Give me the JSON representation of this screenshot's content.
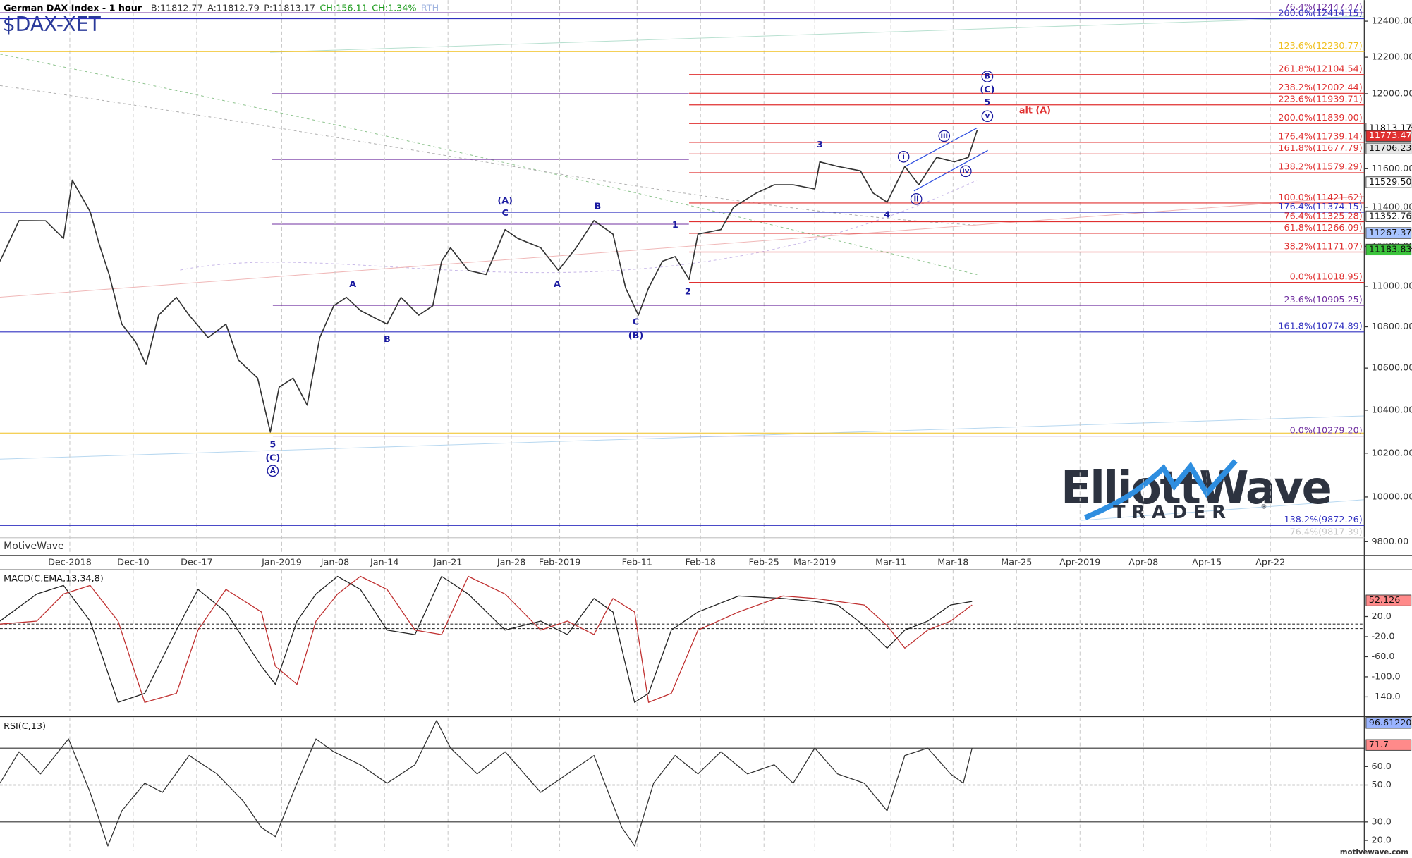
{
  "header": {
    "title": "German DAX Index - 1 hour",
    "bid": "B:11812.77",
    "ask": "A:11812.79",
    "price": "P:11813.17",
    "change": "CH:156.11",
    "change_pct": "CH:1.34%",
    "session": "RTH",
    "symbol": "$DAX-XET",
    "watermark": "MotiveWave",
    "footer": "motivewave.com"
  },
  "logo": {
    "word1": "Elliott",
    "word2": "Wave",
    "word3": "TRADER",
    "mark": "®"
  },
  "chart_data": [
    {
      "type": "line",
      "log": true,
      "xlim": [
        -5.5,
        102
      ],
      "ylim": [
        9747,
        12519
      ],
      "xticks": [
        {
          "value": 0,
          "label": "Dec-2018"
        },
        {
          "value": 5,
          "label": "Dec-10"
        },
        {
          "value": 10,
          "label": "Dec-17"
        },
        {
          "value": 16.7,
          "label": "Jan-2019"
        },
        {
          "value": 20.9,
          "label": "Jan-08"
        },
        {
          "value": 24.8,
          "label": "Jan-14"
        },
        {
          "value": 29.8,
          "label": "Jan-21"
        },
        {
          "value": 34.8,
          "label": "Jan-28"
        },
        {
          "value": 38.6,
          "label": "Feb-2019"
        },
        {
          "value": 44.7,
          "label": "Feb-11"
        },
        {
          "value": 49.7,
          "label": "Feb-18"
        },
        {
          "value": 54.7,
          "label": "Feb-25"
        },
        {
          "value": 58.7,
          "label": "Mar-2019"
        },
        {
          "value": 64.7,
          "label": "Mar-11"
        },
        {
          "value": 69.6,
          "label": "Mar-18"
        },
        {
          "value": 74.6,
          "label": "Mar-25"
        },
        {
          "value": 79.6,
          "label": "Apr-2019"
        },
        {
          "value": 84.6,
          "label": "Apr-08"
        },
        {
          "value": 89.6,
          "label": "Apr-15"
        },
        {
          "value": 94.6,
          "label": "Apr-22"
        }
      ],
      "yticks": [
        {
          "value": 9800,
          "label": "9800.00"
        },
        {
          "value": 10000,
          "label": "10000.00"
        },
        {
          "value": 10200,
          "label": "10200.00"
        },
        {
          "value": 10400,
          "label": "10400.00"
        },
        {
          "value": 10600,
          "label": "10600.00"
        },
        {
          "value": 10800,
          "label": "10800.00"
        },
        {
          "value": 11000,
          "label": "11000.00"
        },
        {
          "value": 11200,
          "label": "11200.00"
        },
        {
          "value": 11400,
          "label": "11400.00"
        },
        {
          "value": 11600,
          "label": "11600.00"
        },
        {
          "value": 11800,
          "label": "11800.00"
        },
        {
          "value": 12000,
          "label": "12000.00"
        },
        {
          "value": 12200,
          "label": "12200.00"
        },
        {
          "value": 12400,
          "label": "12400.00"
        }
      ],
      "series": [
        {
          "color": "#333333",
          "x": [
            -5.5,
            -4.0,
            -1.9,
            -0.5,
            0.2,
            1.6,
            2.3,
            3.1,
            4.1,
            5.2,
            6.0,
            7.0,
            8.4,
            9.4,
            10.9,
            12.3,
            13.3,
            14.8,
            15.8,
            16.5,
            17.6,
            18.7,
            19.7,
            20.8,
            21.8,
            22.9,
            24.3,
            25.0,
            26.1,
            27.5,
            28.6,
            29.3,
            30.0,
            31.4,
            32.8,
            34.3,
            35.3,
            37.1,
            38.5,
            39.9,
            41.3,
            42.8,
            43.8,
            44.8,
            45.6,
            46.7,
            47.7,
            48.8,
            49.5,
            51.3,
            52.3,
            54.1,
            55.5,
            57.0,
            58.7,
            59.1,
            60.5,
            62.3,
            63.3,
            64.4,
            65.8,
            66.9,
            68.3,
            69.7,
            70.8,
            71.5
          ],
          "values": [
            11125,
            11331,
            11330,
            11240,
            11540,
            11377,
            11215,
            11058,
            10813,
            10725,
            10617,
            10857,
            10945,
            10857,
            10747,
            10813,
            10638,
            10552,
            10298,
            10509,
            10552,
            10424,
            10747,
            10903,
            10945,
            10880,
            10835,
            10813,
            10945,
            10857,
            10903,
            11125,
            11193,
            11079,
            11058,
            11285,
            11240,
            11193,
            11079,
            11193,
            11331,
            11262,
            10991,
            10857,
            10991,
            11125,
            11148,
            11034,
            11262,
            11285,
            11400,
            11473,
            11516,
            11516,
            11494,
            11636,
            11612,
            11589,
            11473,
            11426,
            11612,
            11516,
            11660,
            11636,
            11660,
            11805
          ]
        }
      ],
      "levels": [
        {
          "label": "76.4%(12447.47)",
          "value": 12447.47,
          "color": "#7030a0"
        },
        {
          "label": "200.0%(12414.15)",
          "value": 12414.15,
          "color": "#3030c0"
        },
        {
          "label": "123.6%(12230.77)",
          "value": 12230.77,
          "color": "#f0c020"
        },
        {
          "label": "261.8%(12104.54)",
          "value": 12104.54,
          "color": "#e03030",
          "from": 48.8
        },
        {
          "label": "238.2%(12002.44)",
          "value": 12002.44,
          "color": "#e03030",
          "from": 48.8
        },
        {
          "label": "223.6%(11939.71)",
          "value": 11939.71,
          "color": "#e03030",
          "from": 48.8
        },
        {
          "label": "200.0%(11839.00)",
          "value": 11839.0,
          "color": "#e03030",
          "from": 48.8
        },
        {
          "label": "176.4%(11739.14)",
          "value": 11739.14,
          "color": "#e03030",
          "from": 48.8
        },
        {
          "label": "161.8%(11677.79)",
          "value": 11677.79,
          "color": "#e03030",
          "from": 48.8
        },
        {
          "label": "138.2%(11579.29)",
          "value": 11579.29,
          "color": "#e03030",
          "from": 48.8
        },
        {
          "label": "100.0%(11421.62)",
          "value": 11421.62,
          "color": "#e03030",
          "from": 48.8
        },
        {
          "label": "176.4%(11374.15)",
          "value": 11374.15,
          "color": "#3030c0"
        },
        {
          "label": "76.4%(11325.28)",
          "value": 11325.28,
          "color": "#e03030",
          "from": 48.8
        },
        {
          "label": "61.8%(11266.09)",
          "value": 11266.09,
          "color": "#e03030",
          "from": 48.8
        },
        {
          "label": "38.2%(11171.07)",
          "value": 11171.07,
          "color": "#e03030",
          "from": 48.8
        },
        {
          "label": "0.0%(11018.95)",
          "value": 11018.95,
          "color": "#e03030",
          "from": 48.8
        },
        {
          "label": "23.6%(10905.25)",
          "value": 10905.25,
          "color": "#7030a0",
          "from": 16
        },
        {
          "label": "161.8%(10774.89)",
          "value": 10774.89,
          "color": "#3030c0"
        },
        {
          "label": "0.0%(10279.20)",
          "value": 10279.2,
          "color": "#7030a0",
          "from": 16
        },
        {
          "label": "138.2%(9872.26)",
          "value": 9872.26,
          "color": "#3030c0"
        },
        {
          "label": "76.4%(9817.39)",
          "value": 9817.39,
          "color": "#c8c8c8"
        }
      ],
      "annotations": [
        {
          "text": "5",
          "x": 16,
          "y": 10239,
          "color": "#1a1aa0"
        },
        {
          "text": "(C)",
          "x": 16,
          "y": 10177,
          "color": "#1a1aa0"
        },
        {
          "text": "A",
          "x": 16,
          "y": 10119,
          "color": "#1a1aa0",
          "circled": true
        },
        {
          "text": "A",
          "x": 22.3,
          "y": 11008,
          "color": "#1a1aa0"
        },
        {
          "text": "B",
          "x": 25,
          "y": 10738,
          "color": "#1a1aa0"
        },
        {
          "text": "(A)",
          "x": 34.3,
          "y": 11433,
          "color": "#1a1aa0"
        },
        {
          "text": "C",
          "x": 34.3,
          "y": 11368,
          "color": "#1a1aa0"
        },
        {
          "text": "A",
          "x": 38.4,
          "y": 11008,
          "color": "#1a1aa0"
        },
        {
          "text": "B",
          "x": 41.6,
          "y": 11404,
          "color": "#1a1aa0"
        },
        {
          "text": "C",
          "x": 44.6,
          "y": 10822,
          "color": "#1a1aa0"
        },
        {
          "text": "(B)",
          "x": 44.6,
          "y": 10756,
          "color": "#1a1aa0"
        },
        {
          "text": "1",
          "x": 47.7,
          "y": 11308,
          "color": "#1a1aa0"
        },
        {
          "text": "2",
          "x": 48.7,
          "y": 10972,
          "color": "#1a1aa0"
        },
        {
          "text": "3",
          "x": 59.1,
          "y": 11725,
          "color": "#1a1aa0"
        },
        {
          "text": "4",
          "x": 64.4,
          "y": 11359,
          "color": "#1a1aa0"
        },
        {
          "text": "i",
          "x": 65.7,
          "y": 11663,
          "color": "#1a1aa0",
          "circled": true
        },
        {
          "text": "ii",
          "x": 66.7,
          "y": 11442,
          "color": "#1a1aa0",
          "circled": true
        },
        {
          "text": "iii",
          "x": 68.9,
          "y": 11773,
          "color": "#1a1aa0",
          "circled": true
        },
        {
          "text": "iv",
          "x": 70.6,
          "y": 11587,
          "color": "#1a1aa0",
          "circled": true
        },
        {
          "text": "v",
          "x": 72.3,
          "y": 11879,
          "color": "#1a1aa0",
          "circled": true
        },
        {
          "text": "5",
          "x": 72.3,
          "y": 11952,
          "color": "#1a1aa0"
        },
        {
          "text": "(C)",
          "x": 72.3,
          "y": 12020,
          "color": "#1a1aa0"
        },
        {
          "text": "B",
          "x": 72.3,
          "y": 12094,
          "color": "#1a1aa0",
          "circled": true
        },
        {
          "text": "alt (A)",
          "x": 74.8,
          "y": 11908,
          "color": "#e03030"
        }
      ],
      "tags": [
        {
          "value": 11813.17,
          "label": "11813.17",
          "color": "#ffffff"
        },
        {
          "value": 11773.47,
          "label": "11773.47",
          "color": "#e03030"
        },
        {
          "value": 11706.23,
          "label": "11706.23",
          "color": "#e8e8e8"
        },
        {
          "value": 11529.5,
          "label": "11529.50",
          "color": "#ffffff"
        },
        {
          "value": 11352.76,
          "label": "11352.76",
          "color": "#ffffff"
        },
        {
          "value": 11267.37,
          "label": "11267.37",
          "color": "#a8c4ff"
        },
        {
          "value": 11183.83,
          "label": "11183.83",
          "color": "#3cc43c"
        }
      ]
    },
    {
      "type": "line",
      "title": "MACD(C,EMA,13,34,8)",
      "xlim": [
        -5.5,
        102
      ],
      "ylim": [
        -168.6,
        113
      ],
      "yticks": [
        {
          "value": 20,
          "label": "20.0"
        },
        {
          "value": -20,
          "label": "-20.0"
        },
        {
          "value": -60,
          "label": "-60.0"
        },
        {
          "value": -100,
          "label": "-100.0"
        },
        {
          "value": -140,
          "label": "-140.0"
        }
      ],
      "ref_lines": [
        {
          "value": 5,
          "dash": true
        },
        {
          "value": -4,
          "dash": true
        }
      ],
      "series": [
        {
          "color": "#222222",
          "x": [
            -5.5,
            -2.6,
            -0.5,
            1.6,
            3.8,
            5.9,
            8.4,
            10.1,
            12.3,
            15.1,
            16.2,
            17.9,
            19.4,
            21.1,
            22.9,
            25.0,
            27.2,
            29.3,
            31.4,
            34.3,
            37.1,
            39.2,
            41.3,
            42.8,
            44.5,
            45.6,
            47.4,
            49.5,
            52.7,
            56.2,
            58.7,
            60.5,
            62.6,
            64.4,
            65.8,
            67.6,
            69.4,
            71.1
          ],
          "values": [
            11,
            65,
            82,
            11,
            -151,
            -133,
            -7,
            74,
            29,
            -79,
            -115,
            11,
            65,
            100,
            74,
            -7,
            -16,
            100,
            65,
            -7,
            11,
            -16,
            56,
            29,
            -151,
            -133,
            -7,
            29,
            61,
            56,
            50,
            43,
            2,
            -43,
            -7,
            11,
            43,
            50
          ]
        },
        {
          "color": "#c03030",
          "x": [
            -5.5,
            -2.6,
            -0.5,
            1.6,
            3.8,
            5.9,
            8.4,
            10.1,
            12.3,
            15.1,
            16.2,
            17.9,
            19.4,
            21.1,
            22.9,
            25.0,
            27.2,
            29.3,
            31.4,
            34.3,
            37.1,
            39.2,
            41.3,
            42.8,
            44.5,
            45.6,
            47.4,
            49.5,
            52.7,
            56.2,
            58.7,
            60.5,
            62.6,
            64.4,
            65.8,
            67.6,
            69.4,
            71.1
          ],
          "values": [
            5,
            11,
            65,
            82,
            11,
            -151,
            -133,
            -7,
            74,
            29,
            -79,
            -115,
            11,
            65,
            100,
            74,
            -7,
            -16,
            100,
            65,
            -7,
            11,
            -16,
            56,
            29,
            -151,
            -133,
            -7,
            29,
            61,
            56,
            50,
            43,
            2,
            -43,
            -7,
            11,
            43
          ]
        }
      ],
      "tags": [
        {
          "value": 52.126,
          "color": "#ff8a8a"
        }
      ]
    },
    {
      "type": "line",
      "title": "RSI(C,13)",
      "xlim": [
        -5.5,
        102
      ],
      "ylim": [
        14.4,
        86.6
      ],
      "yticks": [
        {
          "value": 60,
          "label": "60.0"
        },
        {
          "value": 50,
          "label": "50.0"
        },
        {
          "value": 30,
          "label": "30.0"
        },
        {
          "value": 20,
          "label": "20.0"
        }
      ],
      "ref_lines": [
        {
          "value": 70,
          "dash": false
        },
        {
          "value": 50,
          "dash": true
        },
        {
          "value": 30,
          "dash": false
        }
      ],
      "series": [
        {
          "color": "#333333",
          "x": [
            -5.5,
            -4.0,
            -2.3,
            -0.1,
            1.6,
            3.0,
            4.1,
            5.9,
            7.3,
            9.4,
            11.6,
            13.7,
            15.1,
            16.2,
            17.9,
            19.4,
            20.8,
            22.9,
            25.0,
            27.2,
            28.9,
            30.0,
            32.1,
            34.3,
            37.1,
            39.2,
            41.3,
            43.5,
            44.5,
            46.0,
            47.7,
            49.5,
            51.3,
            53.4,
            55.5,
            57.0,
            58.7,
            60.5,
            62.6,
            64.4,
            65.8,
            67.6,
            69.4,
            70.4,
            71.1
          ],
          "values": [
            51,
            68,
            56,
            75,
            46,
            17,
            36,
            51,
            46,
            66,
            56,
            41,
            27,
            22,
            51,
            75,
            68,
            61,
            51,
            61,
            85,
            70,
            56,
            68,
            46,
            56,
            66,
            27,
            17,
            51,
            66,
            56,
            68,
            56,
            61,
            51,
            70,
            56,
            51,
            36,
            66,
            70,
            56,
            51,
            70
          ]
        }
      ],
      "tags": [
        {
          "value": 96.6122,
          "label": "96.61220",
          "color": "#9ab4ff"
        },
        {
          "value": 71.7,
          "color": "#ff8a8a"
        }
      ]
    }
  ]
}
